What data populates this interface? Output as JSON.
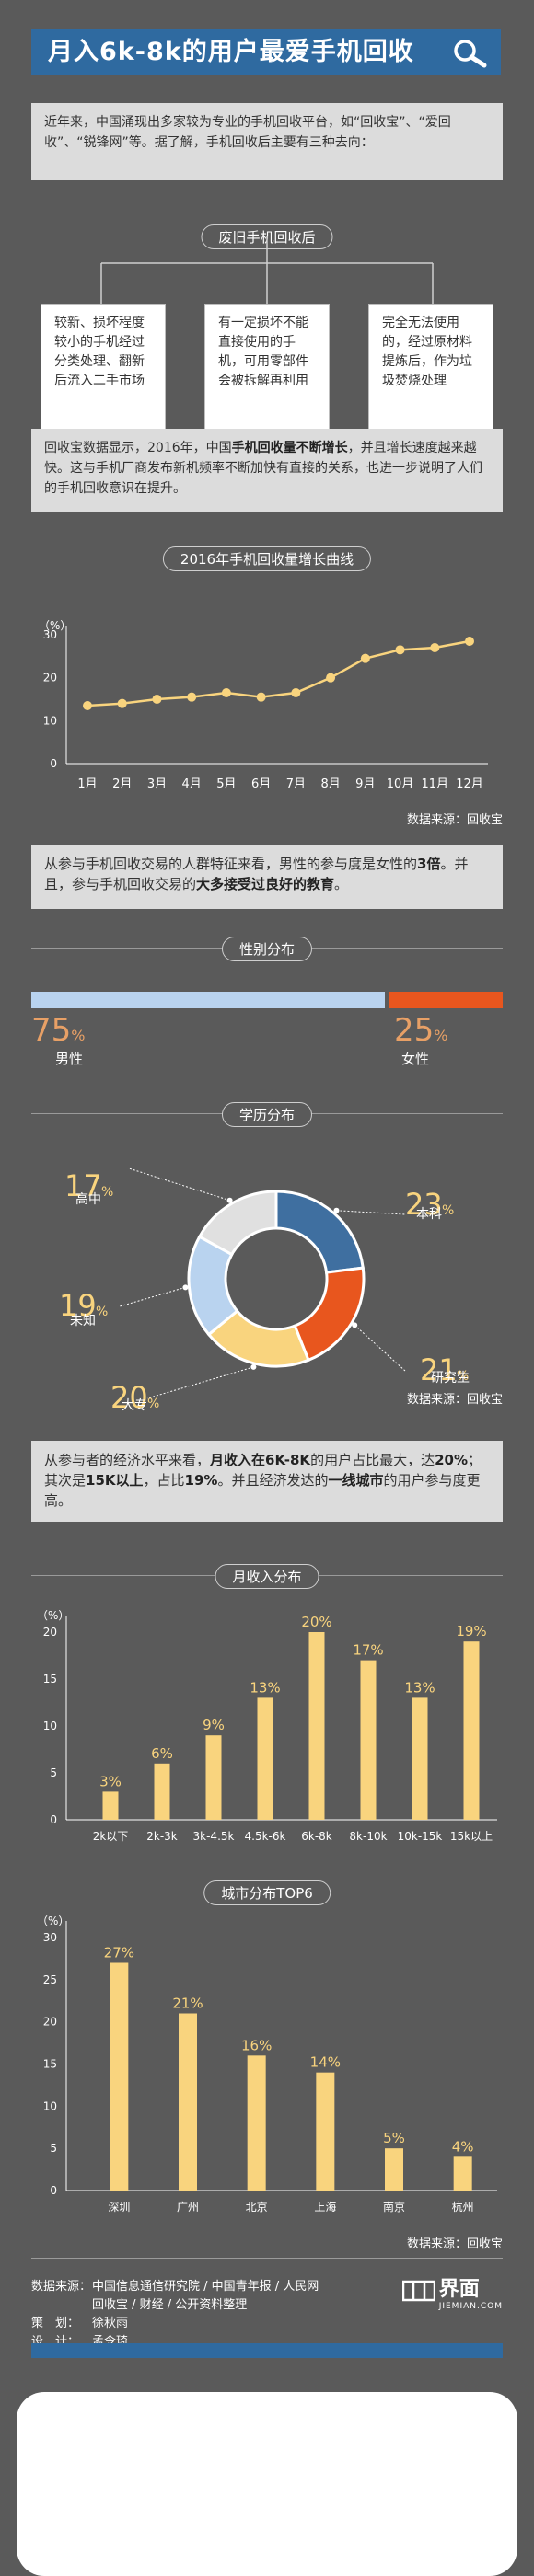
{
  "header": {
    "title": "月入6k-8k的用户最爱手机回收"
  },
  "intro": {
    "text": "近年来，中国涌现出多家较为专业的手机回收平台，如“回收宝”、“爱回收”、“锐锋网”等。据了解，手机回收后主要有三种去向："
  },
  "fate": {
    "title": "废旧手机回收后",
    "boxes": [
      "较新、损坏程度较小的手机经过分类处理、翻新后流入二手市场",
      "有一定损坏不能直接使用的手机，可用零部件会被拆解再利用",
      "完全无法使用的，经过原材料提炼后，作为垃圾焚烧处理"
    ]
  },
  "para2": {
    "a": "回收宝数据显示，2016年，中国",
    "b": "手机回收量不断增长",
    "c": "，并且增长速度越来越快。这与手机厂商发布新机频率不断加快有直接的关系，也进一步说明了人们的手机回收意识在提升。"
  },
  "line_section": {
    "title": "2016年手机回收量增长曲线",
    "source": "数据来源：回收宝"
  },
  "para3": {
    "a": "从参与手机回收交易的人群特征来看，男性的参与度是女性的",
    "b": "3倍",
    "c": "。并且，参与手机回收交易的",
    "d": "大多接受过良好的教育",
    "e": "。"
  },
  "gender": {
    "title": "性别分布",
    "male_value": "75",
    "male_label": "男性",
    "female_value": "25",
    "female_label": "女性",
    "percent": "%",
    "male_color": "#b9d3ef",
    "female_color": "#e8561e"
  },
  "edu": {
    "title": "学历分布",
    "source": "数据来源：回收宝"
  },
  "para4": {
    "a": "从参与者的经济水平来看，",
    "b": "月收入在6K-8K",
    "c": "的用户占比最大，达",
    "d": "20%",
    "e": "；其次是",
    "f": "15K以上",
    "g": "，占比",
    "h": "19%",
    "i": "。并且经济发达的",
    "j": "一线城市",
    "k": "的用户参与度更高。"
  },
  "income": {
    "title": "月收入分布"
  },
  "city": {
    "title": "城市分布TOP6",
    "source": "数据来源：回收宝"
  },
  "footer": {
    "source_label": "数据来源：",
    "source_line1": "中国信息通信研究院 / 中国青年报 / 人民网",
    "source_line2": "回收宝 / 财经 / 公开资料整理",
    "planner_label": "策　划：",
    "planner": "徐秋雨",
    "designer_label": "设　计：",
    "designer": "孟令琦",
    "logo_text": "界面",
    "logo_sub": "JIEMIAN.COM"
  },
  "colors": {
    "blue": "#2f6aa0",
    "bar": "#f9d47e",
    "orange": "#e8561e",
    "grey": "#dcdcdc"
  },
  "chart_data": [
    {
      "type": "line",
      "x": [
        "1月",
        "2月",
        "3月",
        "4月",
        "5月",
        "6月",
        "7月",
        "8月",
        "9月",
        "10月",
        "11月",
        "12月"
      ],
      "values": [
        13.5,
        14,
        15,
        15.5,
        16.5,
        15.5,
        16.5,
        20,
        24.5,
        26.5,
        27,
        28.5
      ],
      "ylabel": "（%）",
      "ylim": [
        0,
        30
      ],
      "yticks": [
        0,
        10,
        20,
        30
      ],
      "grid": false
    },
    {
      "type": "pie",
      "labels": [
        "本科",
        "研究生",
        "大专",
        "未知",
        "高中"
      ],
      "values": [
        23,
        21,
        20,
        19,
        17
      ],
      "colors": [
        "#3f6fa0",
        "#e8561e",
        "#f9d47e",
        "#b9d3ef",
        "#e0e0e0"
      ]
    },
    {
      "type": "bar",
      "categories": [
        "2k以下",
        "2k-3k",
        "3k-4.5k",
        "4.5k-6k",
        "6k-8k",
        "8k-10k",
        "10k-15k",
        "15k以上"
      ],
      "values": [
        3,
        6,
        9,
        13,
        20,
        17,
        13,
        19
      ],
      "labels": [
        "3%",
        "6%",
        "9%",
        "13%",
        "20%",
        "17%",
        "13%",
        "19%"
      ],
      "ylabel": "（%）",
      "ylim": [
        0,
        20
      ],
      "yticks": [
        0,
        5,
        10,
        15,
        20
      ]
    },
    {
      "type": "bar",
      "categories": [
        "深圳",
        "广州",
        "北京",
        "上海",
        "南京",
        "杭州"
      ],
      "values": [
        27,
        21,
        16,
        14,
        5,
        4
      ],
      "labels": [
        "27%",
        "21%",
        "16%",
        "14%",
        "5%",
        "4%"
      ],
      "ylabel": "（%）",
      "ylim": [
        0,
        30
      ],
      "yticks": [
        0,
        5,
        10,
        15,
        20,
        25,
        30
      ]
    }
  ]
}
